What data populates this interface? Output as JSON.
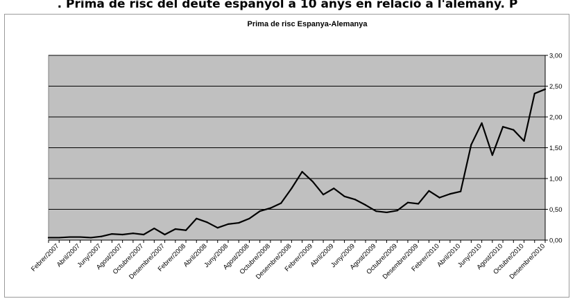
{
  "page": {
    "heading": ". Prima de risc del deute espanyol a 10 anys en relació a l'alemany. P"
  },
  "chart_data": {
    "type": "line",
    "title": "Prima de risc Espanya-Alemanya",
    "xlabel": "",
    "ylabel": "",
    "ylim": [
      0,
      3
    ],
    "y_ticks": [
      "0,00",
      "0,50",
      "1,00",
      "1,50",
      "2,00",
      "2,50",
      "3,00"
    ],
    "y_axis_side": "right",
    "grid": "horizontal",
    "plot_background": "#c0c0c0",
    "line_color": "#000000",
    "x_tick_labels": [
      "Febrer/2007",
      "Abril/2007",
      "Juny/2007",
      "Agost/2007",
      "Octubre/2007",
      "Desembre/2007",
      "Febrer/2008",
      "Abril/2008",
      "Juny/2008",
      "Agost/2008",
      "Octubre/2008",
      "Desembre/2008",
      "Febrer/2009",
      "Abril/2009",
      "Juny/2009",
      "Agost/2009",
      "Octubre/2009",
      "Desembre/2009",
      "Febrer/2010",
      "Abril/2010",
      "Juny/2010",
      "Agost/2010",
      "Octubre/2010",
      "Desembre/2010"
    ],
    "series": [
      {
        "values": [
          0.04,
          0.04,
          0.05,
          0.05,
          0.04,
          0.06,
          0.1,
          0.09,
          0.11,
          0.09,
          0.19,
          0.09,
          0.18,
          0.16,
          0.35,
          0.29,
          0.2,
          0.26,
          0.28,
          0.35,
          0.47,
          0.52,
          0.6,
          0.84,
          1.11,
          0.95,
          0.74,
          0.84,
          0.71,
          0.66,
          0.57,
          0.47,
          0.45,
          0.48,
          0.61,
          0.59,
          0.8,
          0.69,
          0.75,
          0.79,
          1.55,
          1.9,
          1.38,
          1.84,
          1.79,
          1.61,
          2.38,
          2.45
        ]
      }
    ]
  }
}
